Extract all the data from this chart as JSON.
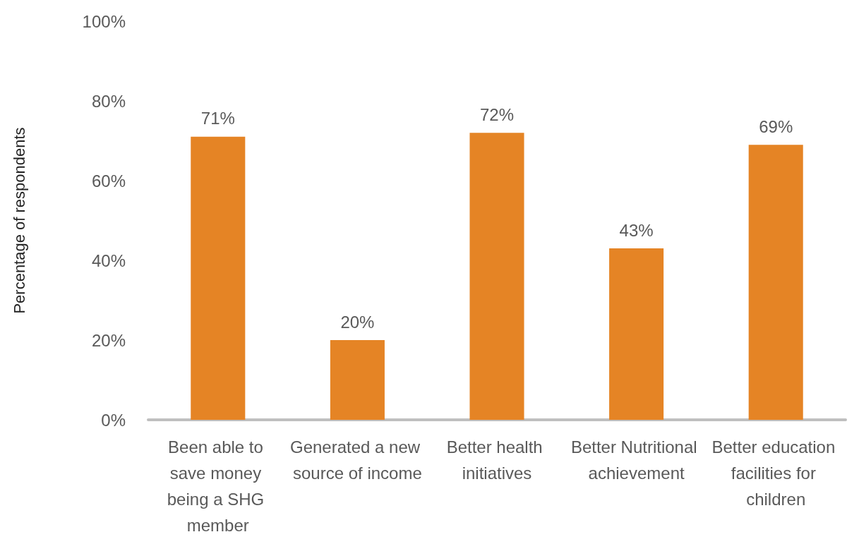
{
  "chart_data": {
    "type": "bar",
    "ylabel": "Percentage of respondents",
    "categories": [
      "Been able to save money being a SHG member",
      "Generated a new source of income",
      "Better health initiatives",
      "Better Nutritional achievement",
      "Better education facilities for children"
    ],
    "values": [
      71,
      20,
      72,
      43,
      69
    ],
    "value_labels": [
      "71%",
      "20%",
      "72%",
      "43%",
      "69%"
    ],
    "color": "#e58425",
    "ylim": [
      0,
      100
    ],
    "yticks": [
      {
        "value": 0,
        "label": "0%"
      },
      {
        "value": 20,
        "label": "20%"
      },
      {
        "value": 40,
        "label": "40%"
      },
      {
        "value": 60,
        "label": "60%"
      },
      {
        "value": 80,
        "label": "80%"
      },
      {
        "value": 100,
        "label": "100%"
      }
    ],
    "grid": false
  }
}
